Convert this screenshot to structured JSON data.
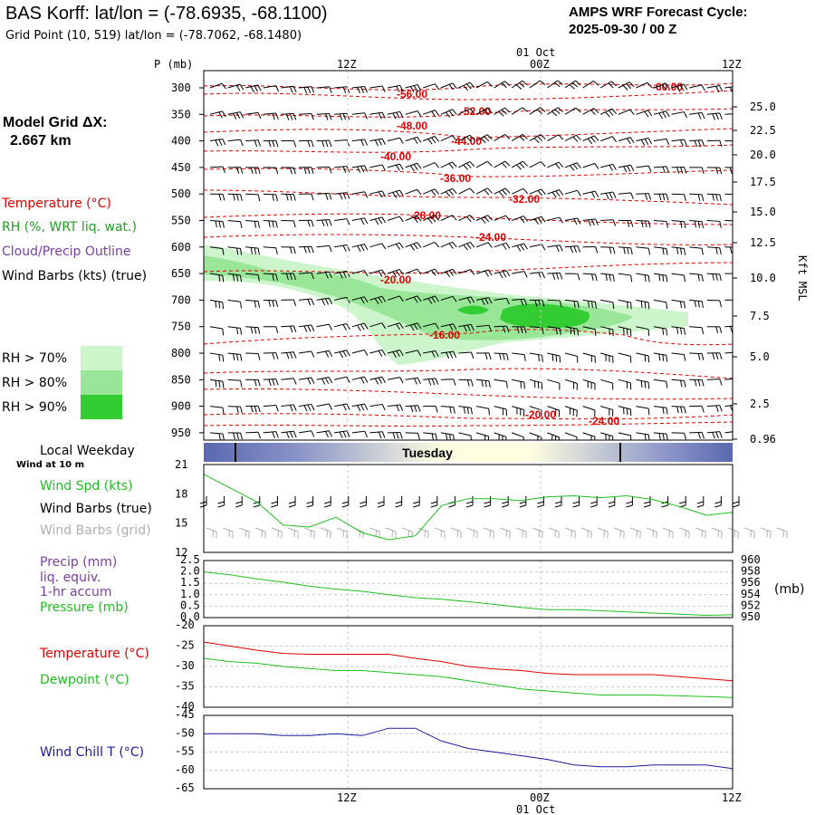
{
  "header": {
    "title": "BAS Korff:  lat/lon = (-78.6935, -68.1100)",
    "grid_point": "Grid Point (10, 519) lat/lon = (-78.7062, -68.1480)",
    "cycle_line1": "AMPS WRF Forecast Cycle:",
    "cycle_line2": "2025-09-30 / 00  Z",
    "grid_res_line1": "Model Grid ΔX:",
    "grid_res_line2": "2.667 km"
  },
  "colors": {
    "temperature": "#e00000",
    "rh": "#1fa01f",
    "cloud": "#7a3fa0",
    "wind": "#000000",
    "wind_grid": "#b0b0b0",
    "precip": "#7a3fa0",
    "pressure": "#1fbf1f",
    "dewpoint": "#1fbf1f",
    "wind_chill": "#1a1aa0",
    "rh70": "#ccf5cc",
    "rh80": "#99e699",
    "rh90": "#33cc33",
    "night": "#5b68b0",
    "day": "#fdfde0"
  },
  "time_axis": {
    "top_labels": [
      "12Z",
      "00Z",
      "12Z"
    ],
    "date_label": "01 Oct",
    "bottom_labels": [
      "12Z",
      "00Z",
      "12Z"
    ]
  },
  "legends": {
    "temperature": "Temperature (°C)",
    "rh": "RH (%, WRT liq. wat.)",
    "cloud": "Cloud/Precip Outline",
    "wind_barbs": "Wind Barbs (kts) (true)",
    "rh70": "RH > 70%",
    "rh80": "RH > 80%",
    "rh90": "RH > 90%",
    "local_weekday": "Local Weekday",
    "wind_10m": "Wind at 10 m",
    "weekday_name": "Tuesday",
    "wind_spd": "Wind Spd (kts)",
    "wind_barbs_true": "Wind Barbs (true)",
    "wind_barbs_grid": "Wind Barbs (grid)",
    "precip1": "Precip (mm)",
    "precip2": "liq. equiv.",
    "precip3": "1-hr accum",
    "pressure": "Pressure (mb)",
    "temp2": "Temperature (°C)",
    "dewpoint": "Dewpoint (°C)",
    "wind_chill": "Wind Chill T (°C)"
  },
  "chart_data": [
    {
      "type": "heatmap",
      "title": "",
      "ylabel": "P (mb)",
      "ylabel_right": "Kft MSL",
      "y_ticks": [
        300,
        350,
        400,
        450,
        500,
        550,
        600,
        650,
        700,
        750,
        800,
        850,
        900,
        950
      ],
      "y_right_ticks": [
        "25.0",
        "22.5",
        "20.0",
        "17.5",
        "15.0",
        "12.5",
        "10.0",
        "7.5",
        "5.0",
        "2.5",
        "0.96"
      ],
      "temperature_contour_labels": [
        "-56.00",
        "-60.00",
        "-52.00",
        "-48.00",
        "-44.00",
        "-40.00",
        "-36.00",
        "-32.00",
        "-28.00",
        "-24.00",
        "-20.00",
        "-16.00",
        "-20.00",
        "-24.00"
      ],
      "rh_regions": [
        {
          "level": "RH > 70%",
          "p_range": [
            620,
            800
          ],
          "time_range_h": [
            0,
            36
          ]
        },
        {
          "level": "RH > 80%",
          "p_range": [
            700,
            760
          ],
          "time_range_h": [
            14,
            30
          ]
        },
        {
          "level": "RH > 90%",
          "p_range": [
            710,
            750
          ],
          "time_range_h": [
            18,
            27
          ]
        }
      ]
    },
    {
      "type": "line",
      "title": "",
      "x": [
        0,
        2,
        4,
        6,
        8,
        10,
        12,
        14,
        16,
        18,
        20,
        22,
        24,
        26,
        28,
        30,
        32,
        34,
        36,
        38,
        40
      ],
      "ylim": [
        12,
        21
      ],
      "y_ticks": [
        12,
        15,
        18,
        21
      ],
      "series": [
        {
          "name": "Wind Spd (kts)",
          "values": [
            20,
            18.6,
            17.2,
            14.8,
            14.6,
            15.6,
            14,
            13.3,
            13.7,
            16.8,
            17.5,
            17.5,
            17.3,
            17.7,
            17.8,
            17.6,
            17.8,
            17.4,
            16.7,
            15.8,
            16.1
          ]
        }
      ]
    },
    {
      "type": "line",
      "title": "",
      "x": [
        0,
        2,
        4,
        6,
        8,
        10,
        12,
        14,
        16,
        18,
        20,
        22,
        24,
        26,
        28,
        30,
        32,
        34,
        36,
        38,
        40
      ],
      "ylim": [
        0,
        2.5
      ],
      "y_ticks": [
        0.0,
        0.5,
        1.0,
        1.5,
        2.0,
        2.5
      ],
      "y2lim": [
        950,
        960
      ],
      "y2_ticks": [
        950,
        952,
        954,
        956,
        958,
        960
      ],
      "series": [
        {
          "name": "Pressure (mb)",
          "values": [
            958,
            957.5,
            956.8,
            956.2,
            955.5,
            955,
            954.6,
            954,
            953.5,
            953.2,
            952.8,
            952.3,
            951.8,
            951.4,
            951.4,
            951.2,
            951,
            950.8,
            950.6,
            950.4,
            950.5
          ]
        }
      ]
    },
    {
      "type": "line",
      "title": "",
      "x": [
        0,
        2,
        4,
        6,
        8,
        10,
        12,
        14,
        16,
        18,
        20,
        22,
        24,
        26,
        28,
        30,
        32,
        34,
        36,
        38,
        40
      ],
      "ylim": [
        -40,
        -20
      ],
      "y_ticks": [
        -40,
        -35,
        -30,
        -25,
        -20
      ],
      "series": [
        {
          "name": "Temperature (°C)",
          "values": [
            -24,
            -25,
            -26,
            -26.8,
            -27,
            -27,
            -27,
            -27,
            -28,
            -28.8,
            -30,
            -30.6,
            -31,
            -31.7,
            -32,
            -32,
            -32,
            -32,
            -32.5,
            -33,
            -33.5
          ]
        },
        {
          "name": "Dewpoint (°C)",
          "values": [
            -28,
            -28.8,
            -29.2,
            -30,
            -30.5,
            -31,
            -31,
            -31.5,
            -32,
            -32.5,
            -33.5,
            -34.5,
            -35.5,
            -36,
            -36.5,
            -37,
            -37,
            -37,
            -37.2,
            -37.4,
            -37.6
          ]
        }
      ]
    },
    {
      "type": "line",
      "title": "",
      "x": [
        0,
        2,
        4,
        6,
        8,
        10,
        12,
        14,
        16,
        18,
        20,
        22,
        24,
        26,
        28,
        30,
        32,
        34,
        36,
        38,
        40
      ],
      "ylim": [
        -65,
        -45
      ],
      "y_ticks": [
        -65,
        -60,
        -55,
        -50,
        -45
      ],
      "series": [
        {
          "name": "Wind Chill T (°C)",
          "values": [
            -50,
            -50,
            -50,
            -50.5,
            -50.5,
            -50,
            -50.5,
            -48.5,
            -48.5,
            -52,
            -54,
            -55,
            -56,
            -57,
            -58.5,
            -59,
            -59,
            -58.5,
            -58.5,
            -58.5,
            -59.5
          ]
        }
      ]
    }
  ]
}
